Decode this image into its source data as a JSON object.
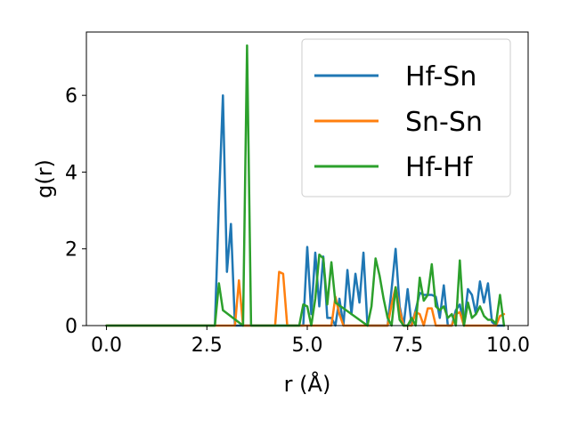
{
  "chart_data": {
    "type": "line",
    "title": "",
    "xlabel": "r (Å)",
    "ylabel": "g(r)",
    "xlim": [
      -0.5,
      10.5
    ],
    "ylim": [
      0,
      7.65
    ],
    "xticks": [
      0.0,
      2.5,
      5.0,
      7.5,
      10.0
    ],
    "xtick_labels": [
      "0.0",
      "2.5",
      "5.0",
      "7.5",
      "10.0"
    ],
    "yticks": [
      0,
      2,
      4,
      6
    ],
    "ytick_labels": [
      "0",
      "2",
      "4",
      "6"
    ],
    "grid": false,
    "legend_position": "top-right",
    "series": [
      {
        "name": "Hf-Sn",
        "color": "#1f77b4",
        "x": [
          0.0,
          2.7,
          2.8,
          2.9,
          3.0,
          3.1,
          3.2,
          3.3,
          4.9,
          5.0,
          5.1,
          5.2,
          5.3,
          5.4,
          5.5,
          5.6,
          5.7,
          5.8,
          5.9,
          6.0,
          6.1,
          6.2,
          6.3,
          6.4,
          6.5,
          7.0,
          7.1,
          7.2,
          7.3,
          7.4,
          7.5,
          7.6,
          7.7,
          7.8,
          7.9,
          8.0,
          8.1,
          8.2,
          8.3,
          8.4,
          8.5,
          8.6,
          8.7,
          8.8,
          8.9,
          9.0,
          9.1,
          9.2,
          9.3,
          9.4,
          9.5,
          9.6,
          9.7,
          9.8,
          9.9
        ],
        "values": [
          0,
          0,
          3.2,
          6.0,
          1.4,
          2.65,
          0,
          0,
          0,
          2.05,
          0.3,
          1.9,
          0.5,
          1.8,
          0.2,
          0.2,
          0.0,
          0.7,
          0.0,
          1.45,
          0.3,
          1.35,
          0.6,
          1.9,
          0.0,
          0.0,
          0.95,
          2.0,
          0.5,
          0.0,
          0.95,
          0.0,
          0.4,
          0.85,
          0.8,
          0.8,
          0.8,
          0.75,
          0.2,
          1.05,
          0.0,
          0.0,
          0.4,
          0.55,
          0.0,
          0.95,
          0.8,
          0.3,
          1.15,
          0.6,
          1.1,
          0.1,
          0.0,
          0.0,
          0.0
        ]
      },
      {
        "name": "Sn-Sn",
        "color": "#ff7f0e",
        "x": [
          0.0,
          3.2,
          3.3,
          3.4,
          4.2,
          4.3,
          4.4,
          4.5,
          5.6,
          5.7,
          5.8,
          5.9,
          7.0,
          7.1,
          7.2,
          7.3,
          7.4,
          7.6,
          7.7,
          7.8,
          7.9,
          8.0,
          8.1,
          8.2,
          8.6,
          8.7,
          8.8,
          8.9,
          9.6,
          9.7,
          9.8,
          9.9
        ],
        "values": [
          0,
          0,
          1.18,
          0,
          0,
          1.4,
          1.35,
          0,
          0,
          0.75,
          0.3,
          0,
          0,
          0.55,
          1.0,
          0.4,
          0,
          0,
          0.35,
          0.3,
          0.0,
          0.45,
          0.45,
          0,
          0,
          0.3,
          0.35,
          0,
          0,
          0.0,
          0.25,
          0.3
        ]
      },
      {
        "name": "Hf-Hf",
        "color": "#2ca02c",
        "x": [
          0.0,
          2.7,
          2.8,
          2.9,
          3.4,
          3.5,
          3.6,
          4.8,
          4.9,
          5.0,
          5.1,
          5.2,
          5.3,
          5.4,
          5.5,
          5.6,
          5.7,
          6.5,
          6.6,
          6.7,
          6.8,
          6.9,
          7.0,
          7.1,
          7.2,
          7.3,
          7.4,
          7.5,
          7.6,
          7.7,
          7.8,
          7.9,
          8.0,
          8.1,
          8.2,
          8.3,
          8.4,
          8.5,
          8.6,
          8.7,
          8.8,
          8.9,
          9.0,
          9.1,
          9.2,
          9.3,
          9.4,
          9.5,
          9.6,
          9.7,
          9.8,
          9.9
        ],
        "values": [
          0,
          0,
          1.1,
          0.4,
          0,
          7.3,
          0,
          0,
          0.55,
          0.5,
          0,
          0.7,
          1.85,
          1.75,
          0.55,
          1.65,
          0.6,
          0,
          0.5,
          1.75,
          1.3,
          0.7,
          0.2,
          0,
          1.0,
          0.15,
          0,
          0,
          0.2,
          0.0,
          1.25,
          0.65,
          0.8,
          1.6,
          0.5,
          0.4,
          0.5,
          0.2,
          0.3,
          0.0,
          1.7,
          0.0,
          0.6,
          0.2,
          0.3,
          0.5,
          0.25,
          0.15,
          0.15,
          0.05,
          0.8,
          0.0
        ]
      }
    ]
  }
}
